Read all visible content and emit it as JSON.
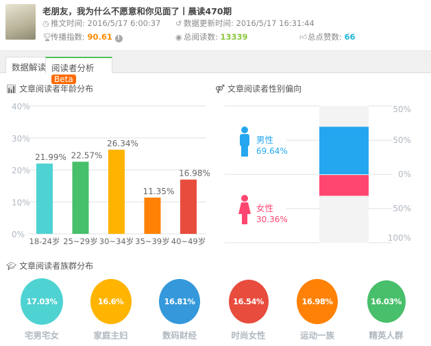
{
  "article": {
    "title": "老朋友，我为什么不愿意和你见面了丨晨读470期",
    "publish_label": "推文时间:",
    "publish_time": "2016/5/17 6:00:37",
    "update_label": "数据更新时间:",
    "update_time": "2016/5/17 16:31:44",
    "spread_label": "传播指数:",
    "spread_value": "90.61",
    "reads_label": "总阅读数:",
    "reads_value": "13339",
    "likes_label": "总点赞数:",
    "likes_value": "66",
    "colors": {
      "spread": "#ff8a00",
      "reads": "#8cc63f",
      "likes": "#1fb5d8"
    }
  },
  "tabs": [
    {
      "label": "数据解读"
    },
    {
      "label": "阅读者分析",
      "badge": "Beta"
    }
  ],
  "chart_data": [
    {
      "type": "bar",
      "title": "文章阅读者年龄分布",
      "categories": [
        "18-24岁",
        "25~29岁",
        "30~34岁",
        "35~39岁",
        "40~49岁"
      ],
      "values": [
        21.99,
        22.57,
        26.34,
        11.35,
        16.98
      ],
      "value_labels": [
        "21.99%",
        "22.57%",
        "26.34%",
        "11.35%",
        "16.98%"
      ],
      "colors": [
        "#4fd2d2",
        "#48bf6a",
        "#ffb400",
        "#ff8106",
        "#e84c3d"
      ],
      "yticks": [
        "0%",
        "10%",
        "20%",
        "30%",
        "40%"
      ],
      "ylim": [
        0,
        40
      ],
      "grid": true
    },
    {
      "type": "bar",
      "title": "文章阅读者性别偏向",
      "categories": [
        "男性",
        "女性"
      ],
      "values": [
        69.64,
        30.36
      ],
      "value_labels": [
        "69.64%",
        "30.36%"
      ],
      "colors": [
        "#25a7f0",
        "#ff4670"
      ],
      "axis_labels": [
        "50%",
        "50%",
        "0%",
        "50%",
        "100%"
      ],
      "ylim": [
        -100,
        100
      ]
    }
  ],
  "groups": {
    "title": "文章阅读者族群分布",
    "items": [
      {
        "label": "宅男宅女",
        "value": "17.03%",
        "color": "#4fd2d2"
      },
      {
        "label": "家庭主妇",
        "value": "16.6%",
        "color": "#ffb400"
      },
      {
        "label": "数码财经",
        "value": "16.81%",
        "color": "#3498db"
      },
      {
        "label": "时尚女性",
        "value": "16.54%",
        "color": "#e84c3d"
      },
      {
        "label": "运动一族",
        "value": "16.98%",
        "color": "#ff8106"
      },
      {
        "label": "精英人群",
        "value": "16.03%",
        "color": "#48bf6a"
      }
    ]
  }
}
